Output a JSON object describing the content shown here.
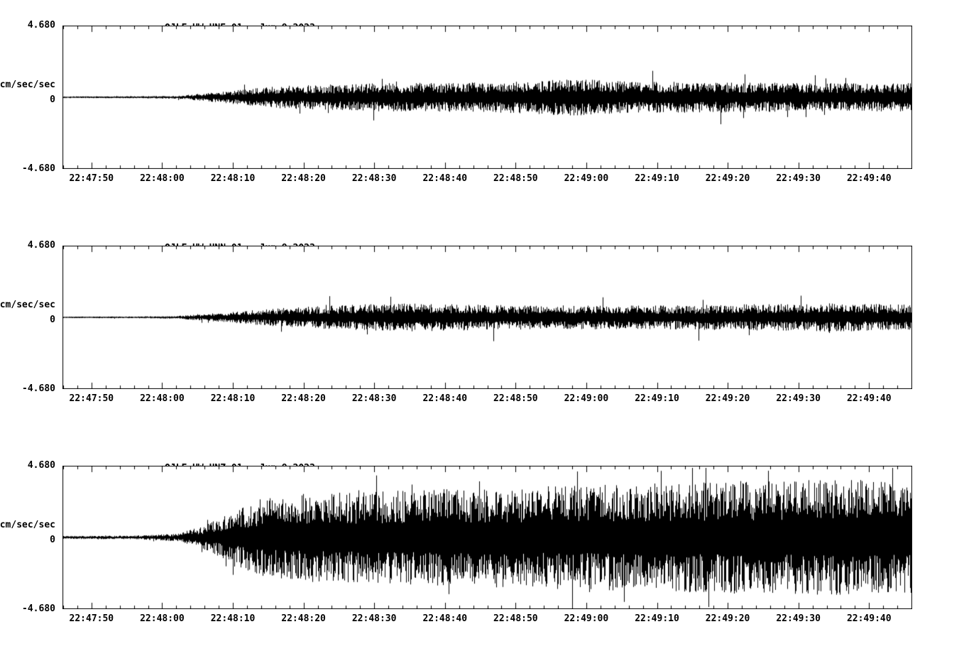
{
  "page": {
    "background": "#ffffff",
    "trace_color": "#000000"
  },
  "chart_data": [
    {
      "type": "line",
      "chart_kind": "seismogram",
      "station": "QJLF_UW_HNE_01",
      "date": "Jun 9,2023",
      "ylabel": "cm/sec/sec",
      "ylim": [
        -4.68,
        4.68
      ],
      "y_ticks": [
        "4.680",
        "0",
        "-4.680"
      ],
      "grid": false,
      "legend": "none",
      "x_start_label": "22:47:46",
      "duration_s": 120,
      "x_first_tick_offset_s": 4,
      "x_tick_interval_s": 10,
      "x_tick_labels": [
        "22:47:50",
        "22:48:00",
        "22:48:10",
        "22:48:20",
        "22:48:30",
        "22:48:40",
        "22:48:50",
        "22:49:00",
        "22:49:10",
        "22:49:20",
        "22:49:30",
        "22:49:40"
      ],
      "envelope": [
        [
          0,
          0.06
        ],
        [
          10,
          0.07
        ],
        [
          16,
          0.1
        ],
        [
          22,
          0.35
        ],
        [
          30,
          0.75
        ],
        [
          45,
          0.95
        ],
        [
          60,
          1.0
        ],
        [
          72,
          1.25
        ],
        [
          80,
          1.05
        ],
        [
          90,
          1.05
        ],
        [
          105,
          0.95
        ],
        [
          120,
          0.95
        ]
      ],
      "render": {
        "seed": 101,
        "minor_tick_s": 2,
        "spike_probability": 0.03,
        "spike_gain": 1.8
      }
    },
    {
      "type": "line",
      "chart_kind": "seismogram",
      "station": "QJLF_UW_HNN_01",
      "date": "Jun 9,2023",
      "ylabel": "cm/sec/sec",
      "ylim": [
        -4.68,
        4.68
      ],
      "y_ticks": [
        "4.680",
        "0",
        "-4.680"
      ],
      "grid": false,
      "legend": "none",
      "x_start_label": "22:47:46",
      "duration_s": 120,
      "x_first_tick_offset_s": 4,
      "x_tick_interval_s": 10,
      "x_tick_labels": [
        "22:47:50",
        "22:48:00",
        "22:48:10",
        "22:48:20",
        "22:48:30",
        "22:48:40",
        "22:48:50",
        "22:49:00",
        "22:49:10",
        "22:49:20",
        "22:49:30",
        "22:49:40"
      ],
      "envelope": [
        [
          0,
          0.05
        ],
        [
          10,
          0.06
        ],
        [
          16,
          0.09
        ],
        [
          22,
          0.3
        ],
        [
          30,
          0.6
        ],
        [
          40,
          0.85
        ],
        [
          50,
          0.95
        ],
        [
          60,
          0.85
        ],
        [
          72,
          0.8
        ],
        [
          85,
          0.8
        ],
        [
          100,
          0.9
        ],
        [
          110,
          0.95
        ],
        [
          120,
          0.85
        ]
      ],
      "render": {
        "seed": 202,
        "minor_tick_s": 2,
        "spike_probability": 0.025,
        "spike_gain": 1.9
      }
    },
    {
      "type": "line",
      "chart_kind": "seismogram",
      "station": "QJLF_UW_HNZ_01",
      "date": "Jun 9,2023",
      "ylabel": "cm/sec/sec",
      "ylim": [
        -4.68,
        4.68
      ],
      "y_ticks": [
        "4.680",
        "0",
        "-4.680"
      ],
      "grid": false,
      "legend": "none",
      "x_start_label": "22:47:46",
      "duration_s": 120,
      "x_first_tick_offset_s": 4,
      "x_tick_interval_s": 10,
      "x_tick_labels": [
        "22:47:50",
        "22:48:00",
        "22:48:10",
        "22:48:20",
        "22:48:30",
        "22:48:40",
        "22:48:50",
        "22:49:00",
        "22:49:10",
        "22:49:20",
        "22:49:30",
        "22:49:40"
      ],
      "envelope": [
        [
          0,
          0.1
        ],
        [
          10,
          0.12
        ],
        [
          16,
          0.25
        ],
        [
          20,
          0.8
        ],
        [
          24,
          1.8
        ],
        [
          28,
          2.6
        ],
        [
          35,
          3.0
        ],
        [
          45,
          3.1
        ],
        [
          55,
          3.3
        ],
        [
          65,
          3.4
        ],
        [
          80,
          3.6
        ],
        [
          95,
          3.8
        ],
        [
          110,
          3.9
        ],
        [
          120,
          3.8
        ]
      ],
      "render": {
        "seed": 303,
        "minor_tick_s": 2,
        "spike_probability": 0.04,
        "spike_gain": 1.45
      }
    }
  ]
}
